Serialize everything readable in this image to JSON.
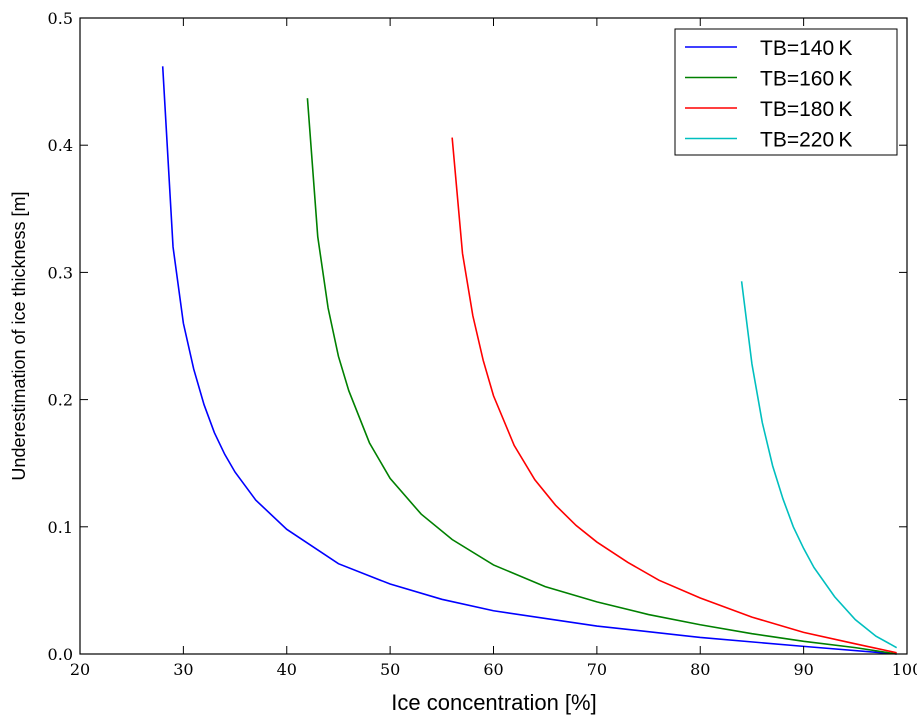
{
  "chart_data": {
    "type": "line",
    "title": "",
    "xlabel": "Ice concentration [%]",
    "ylabel": "Underestimation of ice thickness [m]",
    "xlim": [
      20,
      100
    ],
    "ylim": [
      0,
      0.5
    ],
    "xticks": [
      "20",
      "30",
      "40",
      "50",
      "60",
      "70",
      "80",
      "90",
      "100"
    ],
    "yticks": [
      "0.0",
      "0.1",
      "0.2",
      "0.3",
      "0.4",
      "0.5"
    ],
    "grid": false,
    "legend_position": "top-right",
    "series": [
      {
        "name": "TB=140 K",
        "color": "#0000ff",
        "x": [
          28,
          29,
          30,
          31,
          32,
          33,
          34,
          35,
          37,
          40,
          45,
          50,
          55,
          60,
          70,
          80,
          90,
          99
        ],
        "y": [
          0.462,
          0.32,
          0.26,
          0.224,
          0.196,
          0.174,
          0.157,
          0.143,
          0.121,
          0.098,
          0.071,
          0.055,
          0.043,
          0.034,
          0.022,
          0.013,
          0.006,
          0.0
        ]
      },
      {
        "name": "TB=160 K",
        "color": "#008000",
        "x": [
          42,
          43,
          44,
          45,
          46,
          48,
          50,
          53,
          56,
          60,
          65,
          70,
          75,
          80,
          85,
          90,
          95,
          99
        ],
        "y": [
          0.437,
          0.328,
          0.272,
          0.234,
          0.207,
          0.166,
          0.138,
          0.11,
          0.09,
          0.07,
          0.053,
          0.041,
          0.031,
          0.023,
          0.016,
          0.01,
          0.005,
          0.0
        ]
      },
      {
        "name": "TB=180 K",
        "color": "#ff0000",
        "x": [
          56,
          57,
          58,
          59,
          60,
          62,
          64,
          66,
          68,
          70,
          73,
          76,
          80,
          85,
          90,
          95,
          99
        ],
        "y": [
          0.406,
          0.315,
          0.266,
          0.231,
          0.203,
          0.164,
          0.137,
          0.117,
          0.101,
          0.088,
          0.072,
          0.058,
          0.044,
          0.029,
          0.017,
          0.008,
          0.001
        ]
      },
      {
        "name": "TB=220 K",
        "color": "#00bfbf",
        "x": [
          84,
          85,
          86,
          87,
          88,
          89,
          90,
          91,
          93,
          95,
          97,
          99
        ],
        "y": [
          0.293,
          0.228,
          0.182,
          0.148,
          0.122,
          0.1,
          0.083,
          0.068,
          0.045,
          0.027,
          0.014,
          0.005
        ]
      }
    ]
  }
}
